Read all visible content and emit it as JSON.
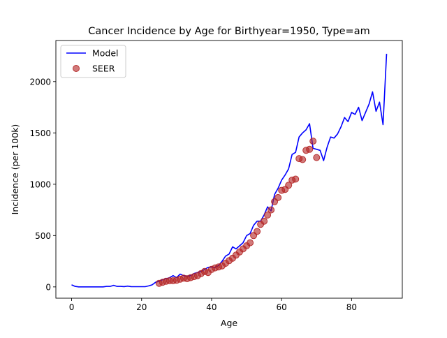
{
  "chart_data": {
    "type": "line",
    "title": "Cancer Incidence by Age for Birthyear=1950, Type=am",
    "xlabel": "Age",
    "ylabel": "Incidence (per 100k)",
    "xlim": [
      -4.5,
      94.5
    ],
    "ylim": [
      -110,
      2400
    ],
    "xticks": [
      0,
      20,
      40,
      60,
      80
    ],
    "yticks": [
      0,
      500,
      1000,
      1500,
      2000
    ],
    "grid": false,
    "legend_position": "top-left",
    "series": [
      {
        "name": "Model",
        "kind": "line",
        "color": "#0000ff",
        "x": [
          0,
          1,
          2,
          3,
          4,
          5,
          6,
          7,
          8,
          9,
          10,
          11,
          12,
          13,
          14,
          15,
          16,
          17,
          18,
          19,
          20,
          21,
          22,
          23,
          24,
          25,
          26,
          27,
          28,
          29,
          30,
          31,
          32,
          33,
          34,
          35,
          36,
          37,
          38,
          39,
          40,
          41,
          42,
          43,
          44,
          45,
          46,
          47,
          48,
          49,
          50,
          51,
          52,
          53,
          54,
          55,
          56,
          57,
          58,
          59,
          60,
          61,
          62,
          63,
          64,
          65,
          66,
          67,
          68,
          69,
          70,
          71,
          72,
          73,
          74,
          75,
          76,
          77,
          78,
          79,
          80,
          81,
          82,
          83,
          84,
          85,
          86,
          87,
          88,
          89,
          90
        ],
        "values": [
          20,
          5,
          0,
          0,
          0,
          0,
          0,
          0,
          0,
          0,
          5,
          5,
          15,
          5,
          5,
          3,
          8,
          3,
          2,
          2,
          2,
          2,
          10,
          20,
          45,
          55,
          70,
          80,
          90,
          110,
          90,
          125,
          110,
          105,
          110,
          130,
          140,
          150,
          170,
          190,
          195,
          190,
          210,
          250,
          300,
          320,
          390,
          370,
          400,
          430,
          500,
          520,
          600,
          640,
          640,
          700,
          780,
          740,
          900,
          960,
          1040,
          1090,
          1150,
          1290,
          1310,
          1460,
          1500,
          1530,
          1590,
          1350,
          1340,
          1330,
          1230,
          1360,
          1460,
          1450,
          1490,
          1560,
          1650,
          1610,
          1700,
          1680,
          1750,
          1620,
          1700,
          1780,
          1900,
          1710,
          1800,
          1580,
          2270
        ]
      },
      {
        "name": "SEER",
        "kind": "scatter",
        "color": "#b22222",
        "x": [
          25,
          26,
          27,
          28,
          29,
          30,
          31,
          32,
          33,
          34,
          35,
          36,
          37,
          38,
          39,
          40,
          41,
          42,
          43,
          44,
          45,
          46,
          47,
          48,
          49,
          50,
          51,
          52,
          53,
          54,
          55,
          56,
          57,
          58,
          59,
          60,
          61,
          62,
          63,
          64,
          65,
          66,
          67,
          68,
          69,
          70
        ],
        "values": [
          35,
          45,
          55,
          60,
          60,
          65,
          75,
          85,
          80,
          90,
          100,
          110,
          130,
          150,
          140,
          170,
          185,
          195,
          205,
          230,
          255,
          280,
          310,
          340,
          370,
          400,
          430,
          500,
          540,
          610,
          640,
          700,
          750,
          830,
          870,
          940,
          950,
          990,
          1040,
          1050,
          1250,
          1240,
          1330,
          1340,
          1420,
          1260
        ]
      }
    ]
  }
}
